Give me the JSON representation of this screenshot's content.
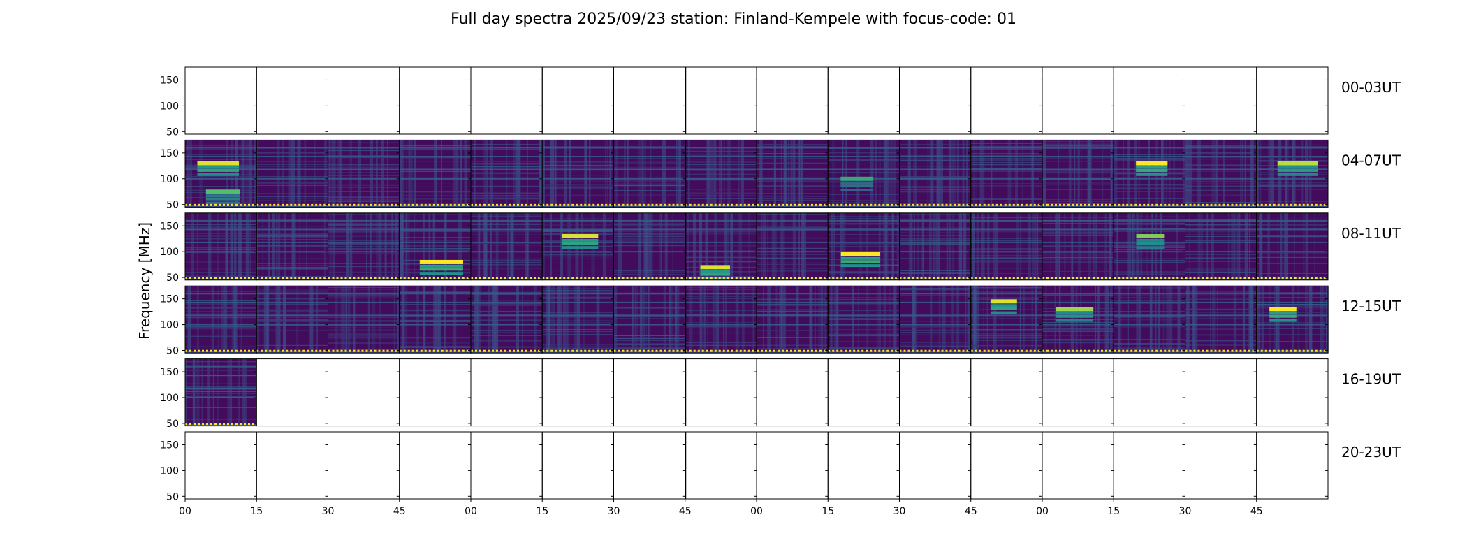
{
  "chart_data": {
    "type": "heatmap",
    "title": "Full day spectra 2025/09/23 station: Finland-Kempele with focus-code: 01",
    "xlabel": "",
    "ylabel": "Frequency [MHz]",
    "ylim": [
      45,
      175
    ],
    "y_ticks": [
      50,
      100,
      150
    ],
    "x_tick_labels": [
      "00",
      "15",
      "30",
      "45",
      "00",
      "15",
      "30",
      "45",
      "00",
      "15",
      "30",
      "45",
      "00",
      "15",
      "30",
      "45"
    ],
    "panels_per_row": 16,
    "minutes_per_panel": 15,
    "colormap": "viridis",
    "colormap_stops": [
      "#440154",
      "#3b528b",
      "#21918c",
      "#5ec962",
      "#fde725"
    ],
    "rows": [
      {
        "label": "00-03UT",
        "hours": [
          0,
          1,
          2,
          3
        ],
        "panels_with_data": 0
      },
      {
        "label": "04-07UT",
        "hours": [
          4,
          5,
          6,
          7
        ],
        "panels_with_data": 16
      },
      {
        "label": "08-11UT",
        "hours": [
          8,
          9,
          10,
          11
        ],
        "panels_with_data": 16
      },
      {
        "label": "12-15UT",
        "hours": [
          12,
          13,
          14,
          15
        ],
        "panels_with_data": 16
      },
      {
        "label": "16-19UT",
        "hours": [
          16,
          17,
          18,
          19
        ],
        "panels_with_data": 1
      },
      {
        "label": "20-23UT",
        "hours": [
          20,
          21,
          22,
          23
        ],
        "panels_with_data": 0
      }
    ],
    "persistent_bands_mhz": [
      47,
      100,
      118,
      143,
      160
    ],
    "bright_features": [
      {
        "row": 1,
        "panel": 0,
        "freq_mhz": 130,
        "intensity": 0.95
      },
      {
        "row": 1,
        "panel": 0,
        "freq_mhz": 75,
        "intensity": 0.7
      },
      {
        "row": 1,
        "panel": 9,
        "freq_mhz": 100,
        "intensity": 0.6
      },
      {
        "row": 1,
        "panel": 13,
        "freq_mhz": 130,
        "intensity": 1.0
      },
      {
        "row": 1,
        "panel": 15,
        "freq_mhz": 130,
        "intensity": 0.9
      },
      {
        "row": 2,
        "panel": 3,
        "freq_mhz": 80,
        "intensity": 1.0
      },
      {
        "row": 2,
        "panel": 5,
        "freq_mhz": 130,
        "intensity": 0.95
      },
      {
        "row": 2,
        "panel": 7,
        "freq_mhz": 70,
        "intensity": 0.95
      },
      {
        "row": 2,
        "panel": 9,
        "freq_mhz": 95,
        "intensity": 1.0
      },
      {
        "row": 2,
        "panel": 13,
        "freq_mhz": 130,
        "intensity": 0.8
      },
      {
        "row": 3,
        "panel": 11,
        "freq_mhz": 145,
        "intensity": 0.95
      },
      {
        "row": 3,
        "panel": 12,
        "freq_mhz": 130,
        "intensity": 0.85
      },
      {
        "row": 3,
        "panel": 15,
        "freq_mhz": 130,
        "intensity": 1.0
      }
    ]
  }
}
